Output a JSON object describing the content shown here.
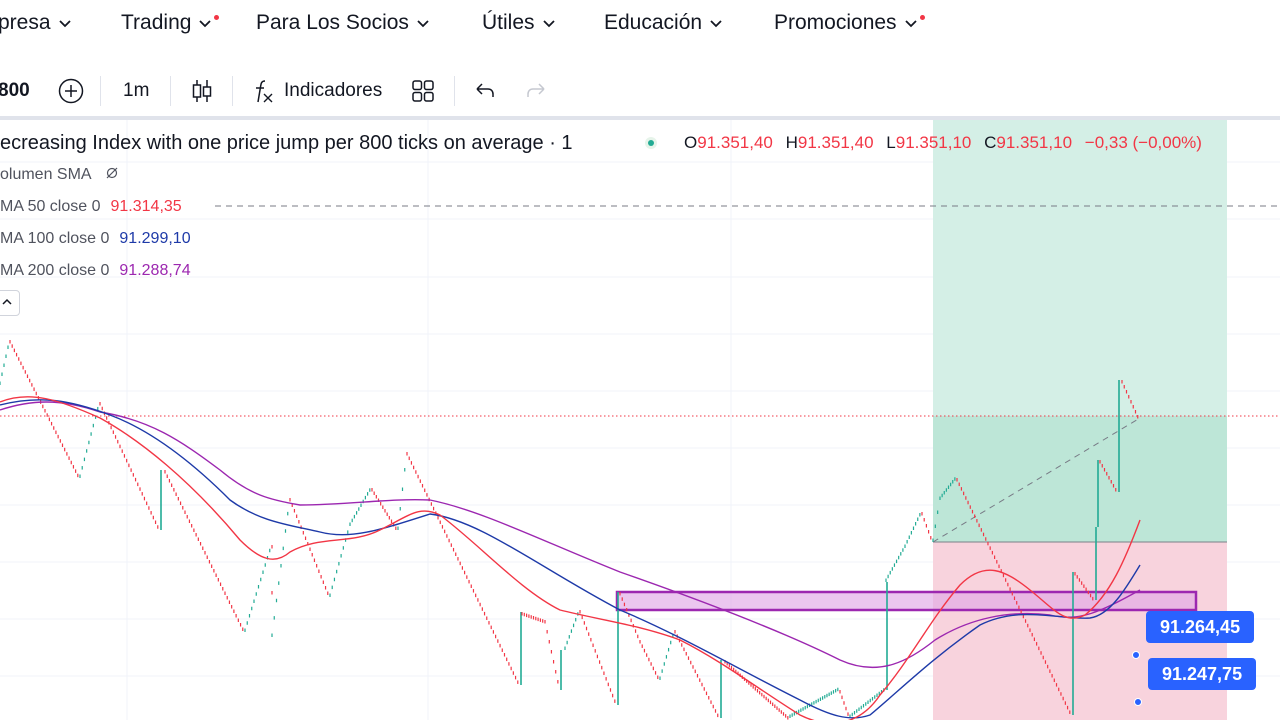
{
  "nav": {
    "items": [
      {
        "label": "presa",
        "has_dot": false
      },
      {
        "label": "Trading",
        "has_dot": true
      },
      {
        "label": "Para Los Socios",
        "has_dot": false
      },
      {
        "label": "Útiles",
        "has_dot": false
      },
      {
        "label": "Educación",
        "has_dot": false
      },
      {
        "label": "Promociones",
        "has_dot": true
      }
    ]
  },
  "toolbar": {
    "symbol": "800",
    "add_symbol_icon": "plus-circle-icon",
    "interval": "1m",
    "chart_type_icon": "candles-icon",
    "indicators_icon": "fx-icon",
    "indicators_label": "Indicadores",
    "layouts_icon": "grid-icon",
    "undo_icon": "undo-icon",
    "redo_icon": "redo-icon"
  },
  "legend": {
    "title": "ecreasing Index with one price jump per 800 ticks on average · 1",
    "ohlc": {
      "o_label": "O",
      "o": "91.351,40",
      "h_label": "H",
      "h": "91.351,40",
      "l_label": "L",
      "l": "91.351,10",
      "c_label": "C",
      "c": "91.351,10",
      "change": "−0,33 (−0,00%)"
    },
    "indicators": [
      {
        "label": "olumen SMA",
        "value": "",
        "icon": "eye-off-icon",
        "color": "#50535e"
      },
      {
        "label": "MA 50 close 0",
        "value": "91.314,35",
        "color": "#f23645"
      },
      {
        "label": "MA 100 close 0",
        "value": "91.299,10",
        "color": "#1e3aa8"
      },
      {
        "label": "MA 200 close 0",
        "value": "91.288,74",
        "color": "#9c27b0"
      }
    ],
    "collapse_icon": "chevron-up-icon"
  },
  "price_tags": [
    {
      "value": "91.264,45"
    },
    {
      "value": "91.247,75"
    }
  ],
  "colors": {
    "accent": "#2962ff",
    "bull": "#22ab94",
    "bear": "#f23645",
    "ma50": "#f23645",
    "ma100": "#1e3aa8",
    "ma200": "#9c27b0",
    "profit_zone": "#d4efe6",
    "loss_zone": "#f8d3dd"
  }
}
